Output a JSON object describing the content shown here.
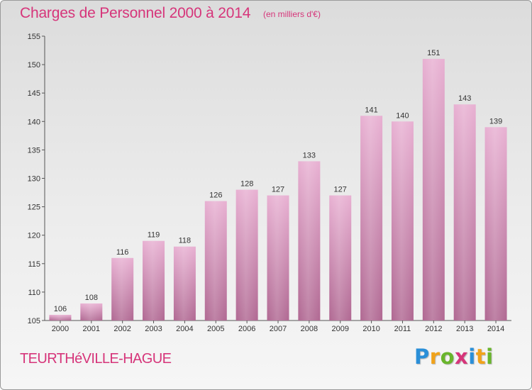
{
  "header": {
    "title": "Charges de Personnel 2000 à 2014",
    "unit": "(en milliers d'€)"
  },
  "footer": {
    "town": "TEURTHéVILLE-HAGUE",
    "logo_letters": [
      {
        "char": "P",
        "color": "#2a8fd8"
      },
      {
        "char": "r",
        "color": "#f0a21a"
      },
      {
        "char": "o",
        "color": "#69b52c"
      },
      {
        "char": "x",
        "color": "#d6357a"
      },
      {
        "char": "i",
        "color": "#2a8fd8"
      },
      {
        "char": "t",
        "color": "#f0a21a"
      },
      {
        "char": "i",
        "color": "#69b52c"
      }
    ]
  },
  "chart_data": {
    "type": "bar",
    "title": "Charges de Personnel 2000 à 2014",
    "subtitle": "(en milliers d'€)",
    "categories": [
      "2000",
      "2001",
      "2002",
      "2003",
      "2004",
      "2005",
      "2006",
      "2007",
      "2008",
      "2009",
      "2010",
      "2011",
      "2012",
      "2013",
      "2014"
    ],
    "values": [
      106,
      108,
      116,
      119,
      118,
      126,
      128,
      127,
      133,
      127,
      141,
      140,
      151,
      143,
      139
    ],
    "ylim": [
      105,
      155
    ],
    "yticks": [
      105,
      110,
      115,
      120,
      125,
      130,
      135,
      140,
      145,
      150,
      155
    ],
    "grid": false,
    "bar_color": "#e0a6c8",
    "bar_color_dark": "#b46a94"
  }
}
